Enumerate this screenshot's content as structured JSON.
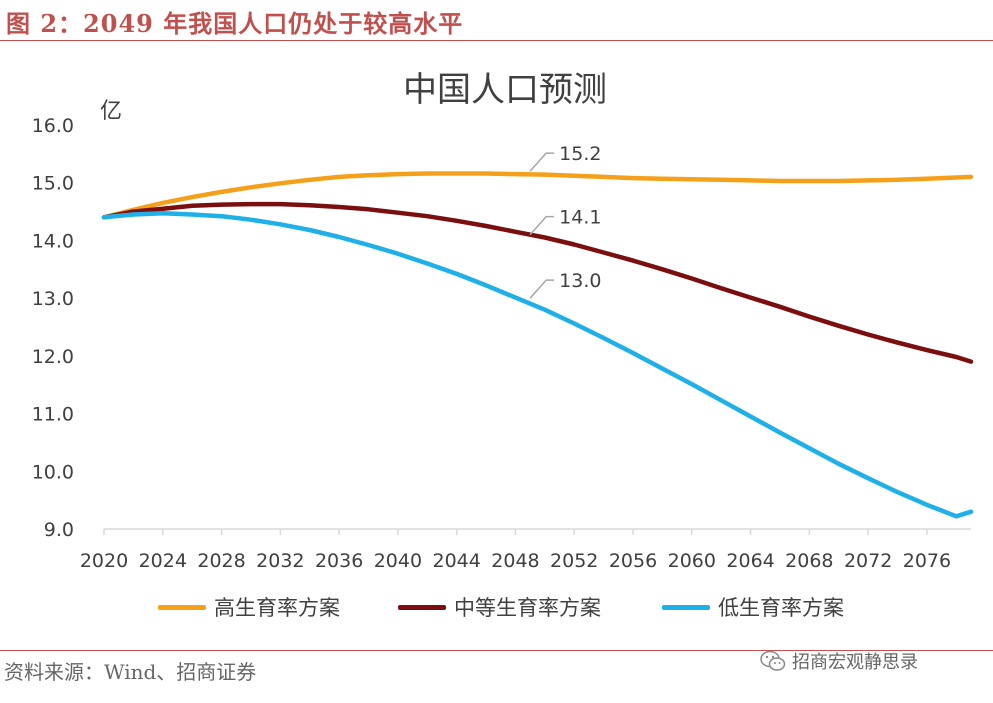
{
  "figure": {
    "caption": "图 2：2049 年我国人口仍处于较高水平",
    "source": "资料来源：Wind、招商证券",
    "watermark": "招商宏观静思录",
    "watermark_icon": "wechat-icon"
  },
  "colors": {
    "accent": "#c0504d",
    "high": "#f5a01a",
    "mid": "#7b0f0f",
    "low": "#1fb0e8",
    "axis": "#d9d9d9",
    "text": "#404040"
  },
  "chart_data": {
    "type": "line",
    "title": "中国人口预测",
    "ylabel": "亿",
    "xlabel": "",
    "xlim": [
      2020,
      2079
    ],
    "ylim": [
      9.0,
      16.0
    ],
    "yticks": [
      "16.0",
      "15.0",
      "14.0",
      "13.0",
      "12.0",
      "11.0",
      "10.0",
      "9.0"
    ],
    "xticks": [
      "2020",
      "2024",
      "2028",
      "2032",
      "2036",
      "2040",
      "2044",
      "2048",
      "2052",
      "2056",
      "2060",
      "2064",
      "2068",
      "2072",
      "2076"
    ],
    "grid": false,
    "legend": "bottom",
    "series": [
      {
        "name": "高生育率方案",
        "color": "#f5a01a",
        "x": [
          2020,
          2022,
          2024,
          2026,
          2028,
          2030,
          2032,
          2034,
          2036,
          2038,
          2040,
          2042,
          2044,
          2046,
          2048,
          2050,
          2052,
          2054,
          2056,
          2058,
          2060,
          2062,
          2064,
          2066,
          2068,
          2070,
          2072,
          2074,
          2076,
          2078,
          2079
        ],
        "values": [
          14.4,
          14.53,
          14.65,
          14.75,
          14.84,
          14.92,
          14.99,
          15.05,
          15.1,
          15.13,
          15.15,
          15.16,
          15.16,
          15.16,
          15.15,
          15.14,
          15.12,
          15.1,
          15.08,
          15.07,
          15.06,
          15.05,
          15.04,
          15.03,
          15.03,
          15.03,
          15.04,
          15.05,
          15.07,
          15.09,
          15.1
        ]
      },
      {
        "name": "中等生育率方案",
        "color": "#7b0f0f",
        "x": [
          2020,
          2022,
          2024,
          2026,
          2028,
          2030,
          2032,
          2034,
          2036,
          2038,
          2040,
          2042,
          2044,
          2046,
          2048,
          2050,
          2052,
          2054,
          2056,
          2058,
          2060,
          2062,
          2064,
          2066,
          2068,
          2070,
          2072,
          2074,
          2076,
          2078,
          2079
        ],
        "values": [
          14.4,
          14.5,
          14.55,
          14.6,
          14.62,
          14.63,
          14.63,
          14.61,
          14.58,
          14.54,
          14.48,
          14.42,
          14.34,
          14.25,
          14.15,
          14.05,
          13.93,
          13.79,
          13.65,
          13.5,
          13.34,
          13.17,
          13.01,
          12.85,
          12.68,
          12.52,
          12.37,
          12.23,
          12.1,
          11.98,
          11.9
        ]
      },
      {
        "name": "低生育率方案",
        "color": "#1fb0e8",
        "x": [
          2020,
          2022,
          2024,
          2026,
          2028,
          2030,
          2032,
          2034,
          2036,
          2038,
          2040,
          2042,
          2044,
          2046,
          2048,
          2050,
          2052,
          2054,
          2056,
          2058,
          2060,
          2062,
          2064,
          2066,
          2068,
          2070,
          2072,
          2074,
          2076,
          2078,
          2079
        ],
        "values": [
          14.4,
          14.45,
          14.47,
          14.45,
          14.42,
          14.36,
          14.28,
          14.18,
          14.06,
          13.92,
          13.77,
          13.6,
          13.42,
          13.22,
          13.01,
          12.8,
          12.56,
          12.31,
          12.05,
          11.78,
          11.51,
          11.23,
          10.95,
          10.67,
          10.4,
          10.13,
          9.88,
          9.64,
          9.42,
          9.22,
          9.3
        ]
      }
    ],
    "annotations": [
      {
        "text": "15.2",
        "series": 0,
        "x": 2049,
        "y": 15.2
      },
      {
        "text": "14.1",
        "series": 1,
        "x": 2049,
        "y": 14.1
      },
      {
        "text": "13.0",
        "series": 2,
        "x": 2049,
        "y": 13.0
      }
    ]
  }
}
